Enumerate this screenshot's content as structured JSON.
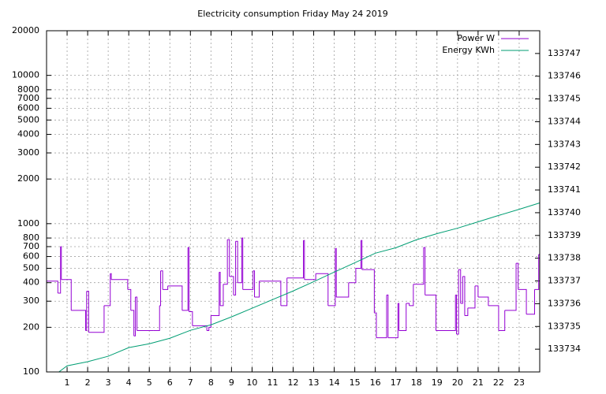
{
  "chart_data": {
    "type": "line",
    "title": "Electricity consumption Friday May 24 2019",
    "xlim": [
      0,
      24
    ],
    "xticks": [
      1,
      2,
      3,
      4,
      5,
      6,
      7,
      8,
      9,
      10,
      11,
      12,
      13,
      14,
      15,
      16,
      17,
      18,
      19,
      20,
      21,
      22,
      23
    ],
    "ylim": [
      100,
      20000
    ],
    "log_y": true,
    "yticks": [
      100,
      200,
      300,
      400,
      500,
      600,
      700,
      800,
      1000,
      2000,
      3000,
      4000,
      5000,
      6000,
      7000,
      8000,
      10000,
      20000
    ],
    "y2lim": [
      133733,
      133748
    ],
    "y2ticks": [
      133734,
      133735,
      133736,
      133737,
      133738,
      133739,
      133740,
      133741,
      133742,
      133743,
      133744,
      133745,
      133746,
      133747
    ],
    "grid": true,
    "legend": "top-right",
    "series": [
      {
        "name": "Power W",
        "color": "#9400d3",
        "step": true,
        "x": [
          0,
          0.55,
          0.68,
          0.72,
          1.2,
          1.9,
          1.95,
          2.05,
          2.8,
          3.1,
          3.15,
          3.95,
          4.1,
          4.25,
          4.32,
          4.4,
          5.2,
          5.5,
          5.55,
          5.65,
          5.9,
          6.6,
          6.88,
          6.93,
          7.1,
          7.8,
          7.9,
          8,
          8.4,
          8.45,
          8.6,
          8.8,
          8.9,
          9.1,
          9.2,
          9.3,
          9.5,
          9.55,
          10.05,
          10.12,
          10.35,
          11.4,
          11.7,
          12.5,
          12.55,
          13.1,
          13.7,
          14.05,
          14.1,
          14.7,
          15.05,
          15.3,
          15.35,
          15.95,
          16.05,
          16.55,
          16.62,
          17.1,
          17.15,
          17.5,
          17.65,
          17.85,
          18.35,
          18.42,
          18.95,
          19.9,
          19.95,
          20.05,
          20.15,
          20.25,
          20.35,
          20.5,
          20.85,
          21,
          21.5,
          22,
          22.3,
          22.85,
          22.95,
          23.35,
          23.75,
          23.95
        ],
        "values": [
          410,
          340,
          700,
          420,
          260,
          190,
          350,
          185,
          280,
          460,
          420,
          360,
          260,
          175,
          320,
          190,
          190,
          280,
          480,
          360,
          380,
          260,
          690,
          255,
          205,
          190,
          200,
          240,
          470,
          280,
          390,
          780,
          440,
          330,
          760,
          400,
          800,
          360,
          480,
          320,
          410,
          280,
          430,
          770,
          420,
          460,
          280,
          680,
          320,
          400,
          500,
          770,
          490,
          250,
          170,
          330,
          170,
          290,
          190,
          290,
          280,
          390,
          690,
          330,
          190,
          330,
          180,
          490,
          290,
          440,
          240,
          270,
          380,
          320,
          280,
          190,
          260,
          540,
          360,
          245,
          360,
          620
        ]
      },
      {
        "name": "Energy KWh",
        "color": "#009e73",
        "axis": "y2",
        "x": [
          0.6,
          1,
          2,
          3,
          4,
          5,
          6,
          7,
          8,
          9,
          10,
          11,
          12,
          13,
          14,
          15,
          16,
          17,
          18,
          19,
          20,
          21,
          22,
          23,
          24
        ],
        "values": [
          133733.0,
          133733.27,
          133733.45,
          133733.69,
          133734.07,
          133734.24,
          133734.48,
          133734.83,
          133735.07,
          133735.42,
          133735.8,
          133736.18,
          133736.56,
          133736.97,
          133737.39,
          133737.8,
          133738.22,
          133738.46,
          133738.81,
          133739.08,
          133739.32,
          133739.6,
          133739.88,
          133740.15,
          133740.43
        ]
      }
    ]
  }
}
